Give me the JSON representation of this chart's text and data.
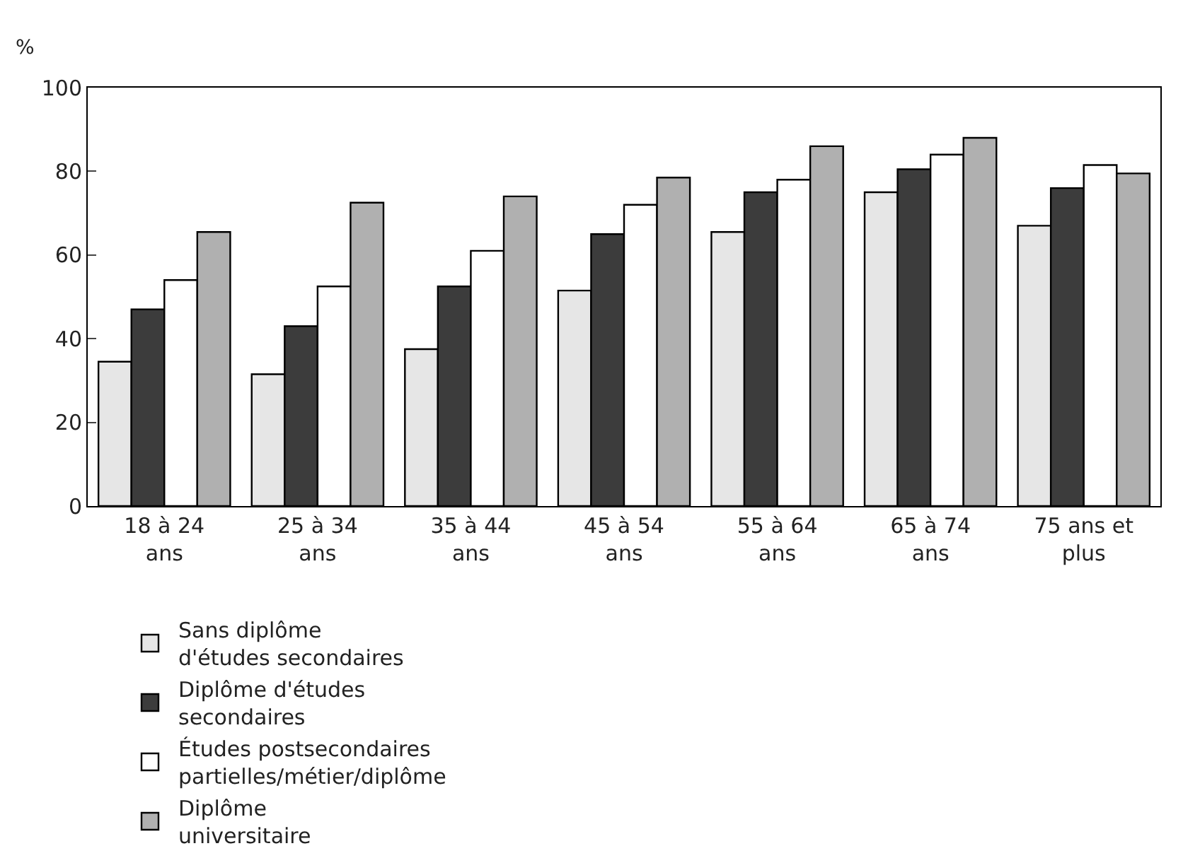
{
  "chart_data": {
    "type": "bar",
    "ylabel": "%",
    "categories": [
      "18 à 24\nans",
      "25 à 34\nans",
      "35 à 44\nans",
      "45 à 54\nans",
      "55 à 64\nans",
      "65 à 74\nans",
      "75 ans et\nplus"
    ],
    "series": [
      {
        "name": "Sans diplôme\nd'études secondaires",
        "color": "#e6e6e6",
        "values": [
          34.5,
          31.5,
          37.5,
          51.5,
          65.5,
          75,
          67
        ]
      },
      {
        "name": "Diplôme d'études\nsecondaires",
        "color": "#3c3c3c",
        "values": [
          47,
          43,
          52.5,
          65,
          75,
          80.5,
          76
        ]
      },
      {
        "name": "Études postsecondaires\npartielles/métier/diplôme",
        "color": "#ffffff",
        "values": [
          54,
          52.5,
          61,
          72,
          78,
          84,
          81.5
        ]
      },
      {
        "name": "Diplôme\nuniversitaire",
        "color": "#b0b0b0",
        "values": [
          65.5,
          72.5,
          74,
          78.5,
          86,
          88,
          79.5
        ]
      }
    ],
    "ylim": [
      0,
      100
    ],
    "yticks": [
      0,
      20,
      40,
      60,
      80,
      100
    ],
    "legend": "bottom"
  }
}
